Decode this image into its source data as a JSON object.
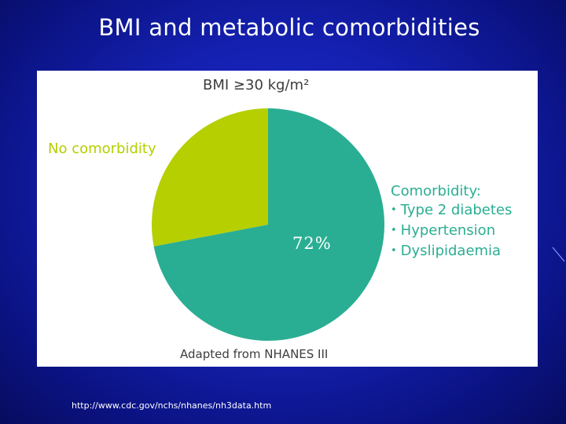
{
  "slide": {
    "title": "BMI and metabolic comorbidities",
    "footer_url": "http://www.cdc.gov/nchs/nhanes/nh3data.htm"
  },
  "chart_data": {
    "type": "pie",
    "title": "BMI ≥30 kg/m²",
    "slices": [
      {
        "label": "Comorbidity",
        "value": 72,
        "color": "#2aae93"
      },
      {
        "label": "No comorbidity",
        "value": 28,
        "color": "#b5cf00"
      }
    ],
    "data_label": "72%",
    "comorbidity_legend": {
      "heading": "Comorbidity:",
      "items": [
        "Type 2 diabetes",
        "Hypertension",
        "Dyslipidaemia"
      ]
    },
    "no_comorbidity_label": "No comorbidity",
    "source": "Adapted from NHANES III"
  }
}
